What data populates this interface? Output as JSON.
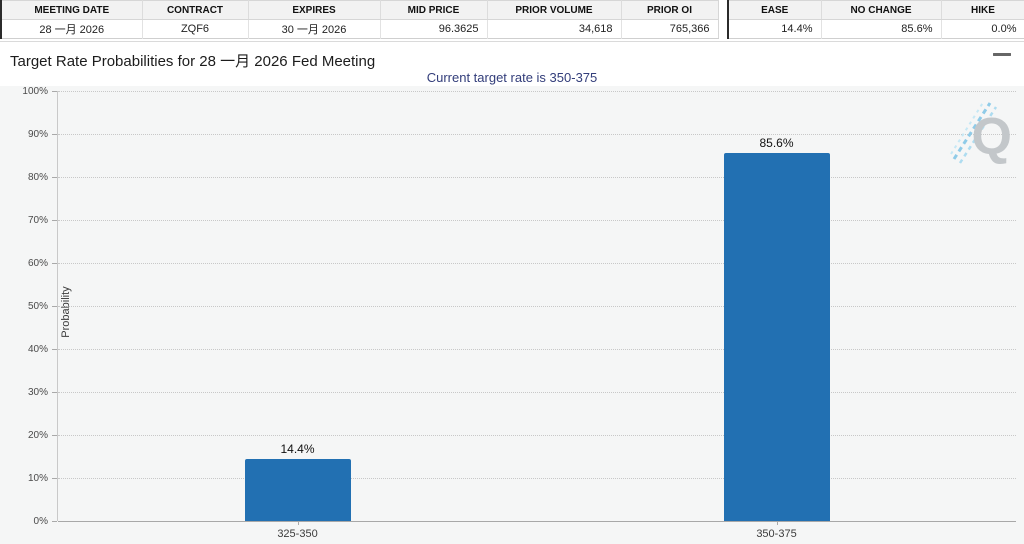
{
  "tables": {
    "contract": {
      "name": "contract-quote-table",
      "columns": [
        {
          "label": "MEETING DATE",
          "value": "28 一月 2026",
          "align": "center"
        },
        {
          "label": "CONTRACT",
          "value": "ZQF6",
          "align": "center"
        },
        {
          "label": "EXPIRES",
          "value": "30 一月 2026",
          "align": "center"
        },
        {
          "label": "MID PRICE",
          "value": "96.3625",
          "align": "right"
        },
        {
          "label": "PRIOR VOLUME",
          "value": "34,618",
          "align": "right"
        },
        {
          "label": "PRIOR OI",
          "value": "765,366",
          "align": "right"
        }
      ]
    },
    "probabilities": {
      "name": "move-probability-table",
      "columns": [
        {
          "label": "EASE",
          "value": "14.4%",
          "align": "right"
        },
        {
          "label": "NO CHANGE",
          "value": "85.6%",
          "align": "right"
        },
        {
          "label": "HIKE",
          "value": "0.0%",
          "align": "right"
        }
      ]
    }
  },
  "header": {
    "title": "Target Rate Probabilities for 28 一月 2026 Fed Meeting",
    "menu_icon": "hamburger-menu-icon"
  },
  "chart_data": {
    "type": "bar",
    "title": "Target Rate Probabilities for 28 一月 2026 Fed Meeting",
    "subtitle": "Current target rate is 350-375",
    "categories": [
      "325-350",
      "350-375"
    ],
    "values": [
      14.4,
      85.6
    ],
    "value_labels": [
      "14.4%",
      "85.6%"
    ],
    "xlabel": "",
    "ylabel": "Probability",
    "ylim": [
      0,
      100
    ],
    "ytick_step": 10,
    "ytick_suffix": "%",
    "grid": "dotted",
    "legend": "none",
    "bar_color": "#2270B2",
    "watermark_letter": "Q"
  },
  "colors": {
    "bar": "#2270B2",
    "subtitle_text": "#323D7A",
    "plot_background": "#F5F6F6",
    "header_background": "#F2F2F2",
    "table_dark_border": "#2B2B2B",
    "gridline": "#C8C8C8",
    "watermark_gray": "#C3C7CA",
    "watermark_blue": "#8FCBE8"
  }
}
